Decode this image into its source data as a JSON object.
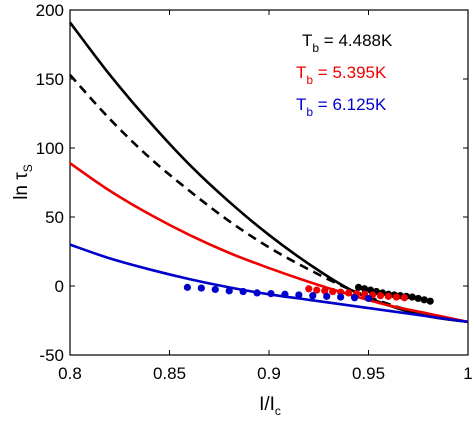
{
  "chart_data": {
    "type": "line",
    "xlabel": "I/I",
    "xlabel_sub": "c",
    "ylabel": "ln τ",
    "ylabel_sub": "S",
    "xlim": [
      0.8,
      1.0
    ],
    "ylim": [
      -50,
      200
    ],
    "xticks": [
      0.8,
      0.85,
      0.9,
      0.95,
      1.0
    ],
    "xtick_labels": [
      "0.8",
      "0.85",
      "0.9",
      "0.95",
      "1"
    ],
    "yticks": [
      -50,
      0,
      50,
      100,
      150,
      200
    ],
    "ytick_labels": [
      "-50",
      "0",
      "50",
      "100",
      "150",
      "200"
    ],
    "grid": false,
    "legend_position": "top-right",
    "legend": [
      {
        "main": "T",
        "sub": "b",
        "value": " = 4.488K",
        "color": "#000000"
      },
      {
        "main": "T",
        "sub": "b",
        "value": " = 5.395K",
        "color": "#ee0000"
      },
      {
        "main": "T",
        "sub": "b",
        "value": " = 6.125K",
        "color": "#0000cc"
      }
    ],
    "lines": [
      {
        "color": "#000000",
        "style": "solid",
        "x": [
          0.8,
          0.82,
          0.84,
          0.86,
          0.88,
          0.9,
          0.92,
          0.94,
          0.96,
          0.98,
          1.0
        ],
        "y": [
          191,
          153,
          119,
          88,
          61,
          37,
          16,
          -2,
          -14,
          -22,
          -26
        ]
      },
      {
        "color": "#000000",
        "style": "dashed",
        "x": [
          0.8,
          0.82,
          0.84,
          0.86,
          0.88,
          0.9,
          0.92,
          0.94,
          0.96,
          0.98,
          1.0
        ],
        "y": [
          153,
          121,
          93,
          69,
          47,
          28,
          12,
          -2,
          -13,
          -21,
          -26
        ]
      },
      {
        "color": "#ee0000",
        "style": "solid",
        "x": [
          0.8,
          0.82,
          0.84,
          0.86,
          0.88,
          0.9,
          0.92,
          0.94,
          0.96,
          0.98,
          1.0
        ],
        "y": [
          89,
          69,
          52,
          37,
          24,
          13,
          3,
          -6,
          -14,
          -20,
          -26
        ]
      },
      {
        "color": "#0000cc",
        "style": "solid",
        "x": [
          0.8,
          0.82,
          0.84,
          0.86,
          0.88,
          0.9,
          0.92,
          0.94,
          0.96,
          0.98,
          1.0
        ],
        "y": [
          30,
          20,
          12,
          5,
          -1,
          -6,
          -10,
          -14,
          -18,
          -22,
          -26
        ]
      }
    ],
    "scatter": [
      {
        "color": "#000000",
        "x": [
          0.945,
          0.948,
          0.951,
          0.954,
          0.957,
          0.96,
          0.963,
          0.966,
          0.969,
          0.972,
          0.975,
          0.978,
          0.981
        ],
        "y": [
          -1,
          -2,
          -3,
          -4,
          -5,
          -6,
          -6.5,
          -7,
          -7.5,
          -8,
          -9,
          -10,
          -11
        ]
      },
      {
        "color": "#ee0000",
        "x": [
          0.92,
          0.924,
          0.928,
          0.932,
          0.936,
          0.94,
          0.944,
          0.948,
          0.952,
          0.956,
          0.96,
          0.964,
          0.968
        ],
        "y": [
          -2,
          -3,
          -3.5,
          -4,
          -4.5,
          -5,
          -5.5,
          -6,
          -6.5,
          -7,
          -7.5,
          -8,
          -8.5
        ]
      },
      {
        "color": "#0000cc",
        "x": [
          0.859,
          0.866,
          0.873,
          0.88,
          0.887,
          0.894,
          0.901,
          0.908,
          0.915,
          0.922,
          0.929,
          0.936,
          0.943,
          0.95
        ],
        "y": [
          -1,
          -1.5,
          -2.5,
          -3.5,
          -4,
          -5,
          -5.5,
          -6,
          -6.5,
          -7,
          -7.5,
          -8,
          -8.5,
          -9
        ]
      }
    ]
  }
}
